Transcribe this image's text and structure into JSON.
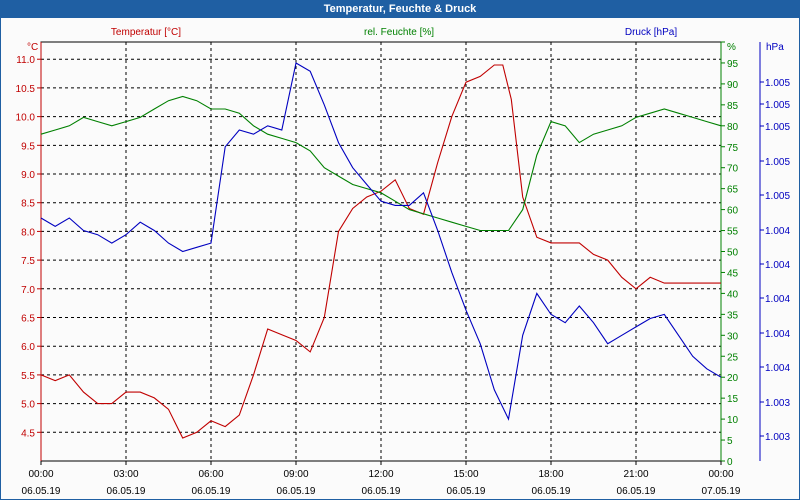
{
  "window": {
    "title": "Temperatur, Feuchte & Druck"
  },
  "colors": {
    "temperature": "#c00000",
    "humidity": "#008000",
    "pressure": "#0000c0",
    "grid": "#000000",
    "titlebar": "#1f5fa3"
  },
  "chart_data": {
    "type": "line",
    "title": "Temperatur, Feuchte & Druck",
    "grid": true,
    "legend_position": "top",
    "x_axis": {
      "range": [
        "06.05.19 00:00",
        "07.05.19 00:00"
      ],
      "ticks": [
        {
          "time": "00:00",
          "date": "06.05.19"
        },
        {
          "time": "03:00",
          "date": "06.05.19"
        },
        {
          "time": "06:00",
          "date": "06.05.19"
        },
        {
          "time": "09:00",
          "date": "06.05.19"
        },
        {
          "time": "12:00",
          "date": "06.05.19"
        },
        {
          "time": "15:00",
          "date": "06.05.19"
        },
        {
          "time": "18:00",
          "date": "06.05.19"
        },
        {
          "time": "21:00",
          "date": "06.05.19"
        },
        {
          "time": "00:00",
          "date": "07.05.19"
        }
      ]
    },
    "axes": {
      "temperature": {
        "label": "Temperatur [°C]",
        "unit": "°C",
        "range": [
          4.0,
          11.3
        ],
        "ticks": [
          "4.5",
          "5.0",
          "5.5",
          "6.0",
          "6.5",
          "7.0",
          "7.5",
          "8.0",
          "8.5",
          "9.0",
          "9.5",
          "10.0",
          "10.5",
          "11.0"
        ]
      },
      "humidity": {
        "label": "rel. Feuchte [%]",
        "unit": "%",
        "range": [
          0,
          100
        ],
        "ticks": [
          "0",
          "5",
          "10",
          "15",
          "20",
          "25",
          "30",
          "35",
          "40",
          "45",
          "50",
          "55",
          "60",
          "65",
          "70",
          "75",
          "80",
          "85",
          "90",
          "95",
          "%"
        ]
      },
      "pressure": {
        "label": "Druck [hPa]",
        "unit": "hPa",
        "range": [
          0,
          100
        ],
        "ticks": [
          "1.003",
          "1.003",
          "1.004",
          "1.004",
          "1.004",
          "1.004",
          "1.004",
          "1.005",
          "1.005",
          "1.005",
          "1.005",
          "1.005"
        ]
      }
    },
    "series": [
      {
        "name": "Temperatur [°C]",
        "axis": "temperature",
        "x_hours": [
          0,
          0.5,
          1,
          1.5,
          2,
          2.5,
          3,
          3.5,
          4,
          4.5,
          5,
          5.5,
          6,
          6.5,
          7,
          7.5,
          8,
          8.5,
          9,
          9.5,
          10,
          10.5,
          11,
          11.5,
          12,
          12.5,
          13,
          13.5,
          14,
          14.5,
          15,
          15.5,
          16,
          16.3,
          16.6,
          17,
          17.5,
          18,
          18.5,
          19,
          19.5,
          20,
          20.5,
          21,
          21.5,
          22,
          22.5,
          23,
          23.5,
          24
        ],
        "values": [
          5.5,
          5.4,
          5.5,
          5.2,
          5.0,
          5.0,
          5.2,
          5.2,
          5.1,
          4.9,
          4.4,
          4.5,
          4.7,
          4.6,
          4.8,
          5.5,
          6.3,
          6.2,
          6.1,
          5.9,
          6.5,
          8.0,
          8.4,
          8.6,
          8.7,
          8.9,
          8.4,
          8.3,
          9.2,
          10.0,
          10.6,
          10.7,
          10.9,
          10.9,
          10.3,
          8.6,
          7.9,
          7.8,
          7.8,
          7.8,
          7.6,
          7.5,
          7.2,
          7.0,
          7.2,
          7.1,
          7.1,
          7.1,
          7.1,
          7.1
        ]
      },
      {
        "name": "rel. Feuchte [%]",
        "axis": "humidity",
        "x_hours": [
          0,
          0.5,
          1,
          1.5,
          2,
          2.5,
          3,
          3.5,
          4,
          4.5,
          5,
          5.5,
          6,
          6.5,
          7,
          7.5,
          8,
          8.5,
          9,
          9.5,
          10,
          10.5,
          11,
          11.5,
          12,
          12.5,
          13,
          13.5,
          14,
          14.5,
          15,
          15.5,
          16,
          16.5,
          17,
          17.5,
          18,
          18.5,
          19,
          19.5,
          20,
          20.5,
          21,
          21.5,
          22,
          22.5,
          23,
          23.5,
          24
        ],
        "values": [
          78,
          79,
          80,
          82,
          81,
          80,
          81,
          82,
          84,
          86,
          87,
          86,
          84,
          84,
          83,
          80,
          78,
          77,
          76,
          74,
          70,
          68,
          66,
          65,
          64,
          62,
          60,
          59,
          58,
          57,
          56,
          55,
          55,
          55,
          60,
          73,
          81,
          80,
          76,
          78,
          79,
          80,
          82,
          83,
          84,
          83,
          82,
          81,
          80
        ]
      },
      {
        "name": "Druck [hPa]",
        "axis": "pressure",
        "x_hours": [
          0,
          0.5,
          1,
          1.5,
          2,
          2.5,
          3,
          3.5,
          4,
          4.5,
          5,
          5.5,
          6,
          6.5,
          7,
          7.5,
          8,
          8.5,
          9,
          9.5,
          10,
          10.5,
          11,
          11.5,
          12,
          12.5,
          13,
          13.5,
          14,
          14.5,
          15,
          15.5,
          16,
          16.5,
          17,
          17.5,
          18,
          18.5,
          19,
          19.5,
          20,
          20.5,
          21,
          21.5,
          22,
          22.5,
          23,
          23.5,
          24
        ],
        "values": [
          58,
          56,
          58,
          55,
          54,
          52,
          54,
          57,
          55,
          52,
          50,
          51,
          52,
          75,
          79,
          78,
          80,
          79,
          95,
          93,
          85,
          76,
          70,
          66,
          62,
          61,
          61,
          64,
          55,
          45,
          36,
          28,
          17,
          10,
          30,
          40,
          35,
          33,
          37,
          33,
          28,
          30,
          32,
          34,
          35,
          30,
          25,
          22,
          20
        ]
      }
    ]
  }
}
